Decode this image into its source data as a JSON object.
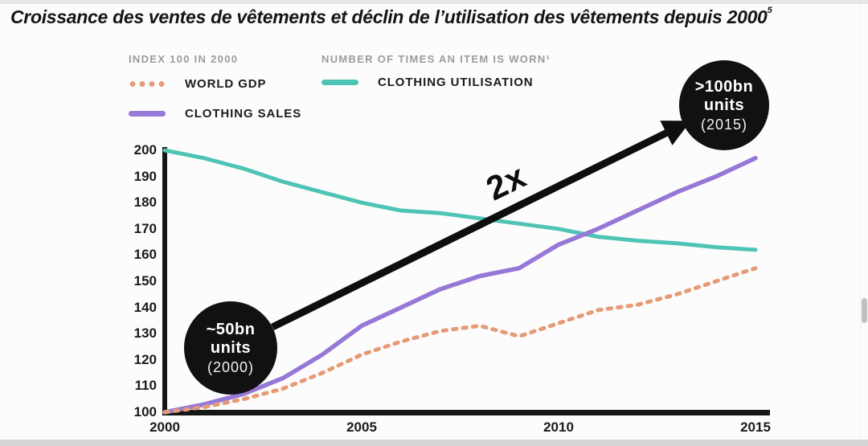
{
  "title": {
    "text": "Croissance des ventes de vêtements et déclin de l’utilisation des vêtements depuis 2000",
    "footnote_marker": "5"
  },
  "legend": {
    "left_header": "INDEX 100 IN 2000",
    "right_header": "NUMBER OF TIMES AN ITEM IS WORN¹",
    "items": [
      {
        "id": "world-gdp",
        "label": "WORLD GDP",
        "color": "#e59b77",
        "style": "dotted"
      },
      {
        "id": "clothing-sales",
        "label": "CLOTHING SALES",
        "color": "#9678d6",
        "style": "solid"
      },
      {
        "id": "clothing-utilisation",
        "label": "CLOTHING UTILISATION",
        "color": "#4fc4b5",
        "style": "solid"
      }
    ]
  },
  "annotations": {
    "start_bubble": {
      "line1": "~50bn",
      "line2": "units",
      "line3": "(2000)"
    },
    "end_bubble": {
      "line1": ">100bn",
      "line2": "units",
      "line3": "(2015)"
    },
    "multiplier": "2x"
  },
  "colors": {
    "axis": "#161616",
    "arrow": "#0e0e0e",
    "bubble": "#111111",
    "tick_text": "#1b1b1b",
    "header_text": "#9b9b9b"
  },
  "chart_data": {
    "type": "line",
    "title": "Croissance des ventes de vêtements et déclin de l’utilisation des vêtements depuis 2000",
    "xlabel": "",
    "ylabel_left": "INDEX 100 IN 2000",
    "ylabel_right": "NUMBER OF TIMES AN ITEM IS WORN",
    "grid": false,
    "legend_position": "top-left",
    "ylim": [
      100,
      200
    ],
    "yticks": [
      100,
      110,
      120,
      130,
      140,
      150,
      160,
      170,
      180,
      190,
      200
    ],
    "xticks": [
      2000,
      2005,
      2010,
      2015
    ],
    "x": [
      2000,
      2001,
      2002,
      2003,
      2004,
      2005,
      2006,
      2007,
      2008,
      2009,
      2010,
      2011,
      2012,
      2013,
      2014,
      2015
    ],
    "series": [
      {
        "id": "clothing-utilisation",
        "name": "CLOTHING UTILISATION",
        "color": "#4fc4b5",
        "dash": "",
        "width": 5,
        "values": [
          200,
          197,
          193,
          188,
          184,
          180,
          177,
          176,
          174,
          172,
          170,
          167,
          165.5,
          164.5,
          163,
          162
        ]
      },
      {
        "id": "clothing-sales",
        "name": "CLOTHING SALES",
        "color": "#9678d6",
        "dash": "",
        "width": 5.5,
        "values": [
          100,
          103,
          107,
          113,
          122,
          133,
          140,
          147,
          152,
          155,
          164,
          170,
          177,
          184,
          190,
          197
        ]
      },
      {
        "id": "world-gdp",
        "name": "WORLD GDP",
        "color": "#e59b77",
        "dash": "4.5 8",
        "width": 5,
        "values": [
          100,
          102,
          105,
          109,
          115,
          122,
          127,
          131,
          133,
          129,
          134,
          139,
          141,
          145,
          150,
          155
        ]
      }
    ],
    "annotations": [
      {
        "text": "~50bn units (2000)",
        "x": 2000,
        "note": "bubble at start of clothing sales line"
      },
      {
        "text": ">100bn units (2015)",
        "x": 2015,
        "note": "bubble at end of clothing sales line"
      },
      {
        "text": "2x",
        "note": "doubling arrow from 2000 bubble to 2015 bubble"
      }
    ]
  }
}
